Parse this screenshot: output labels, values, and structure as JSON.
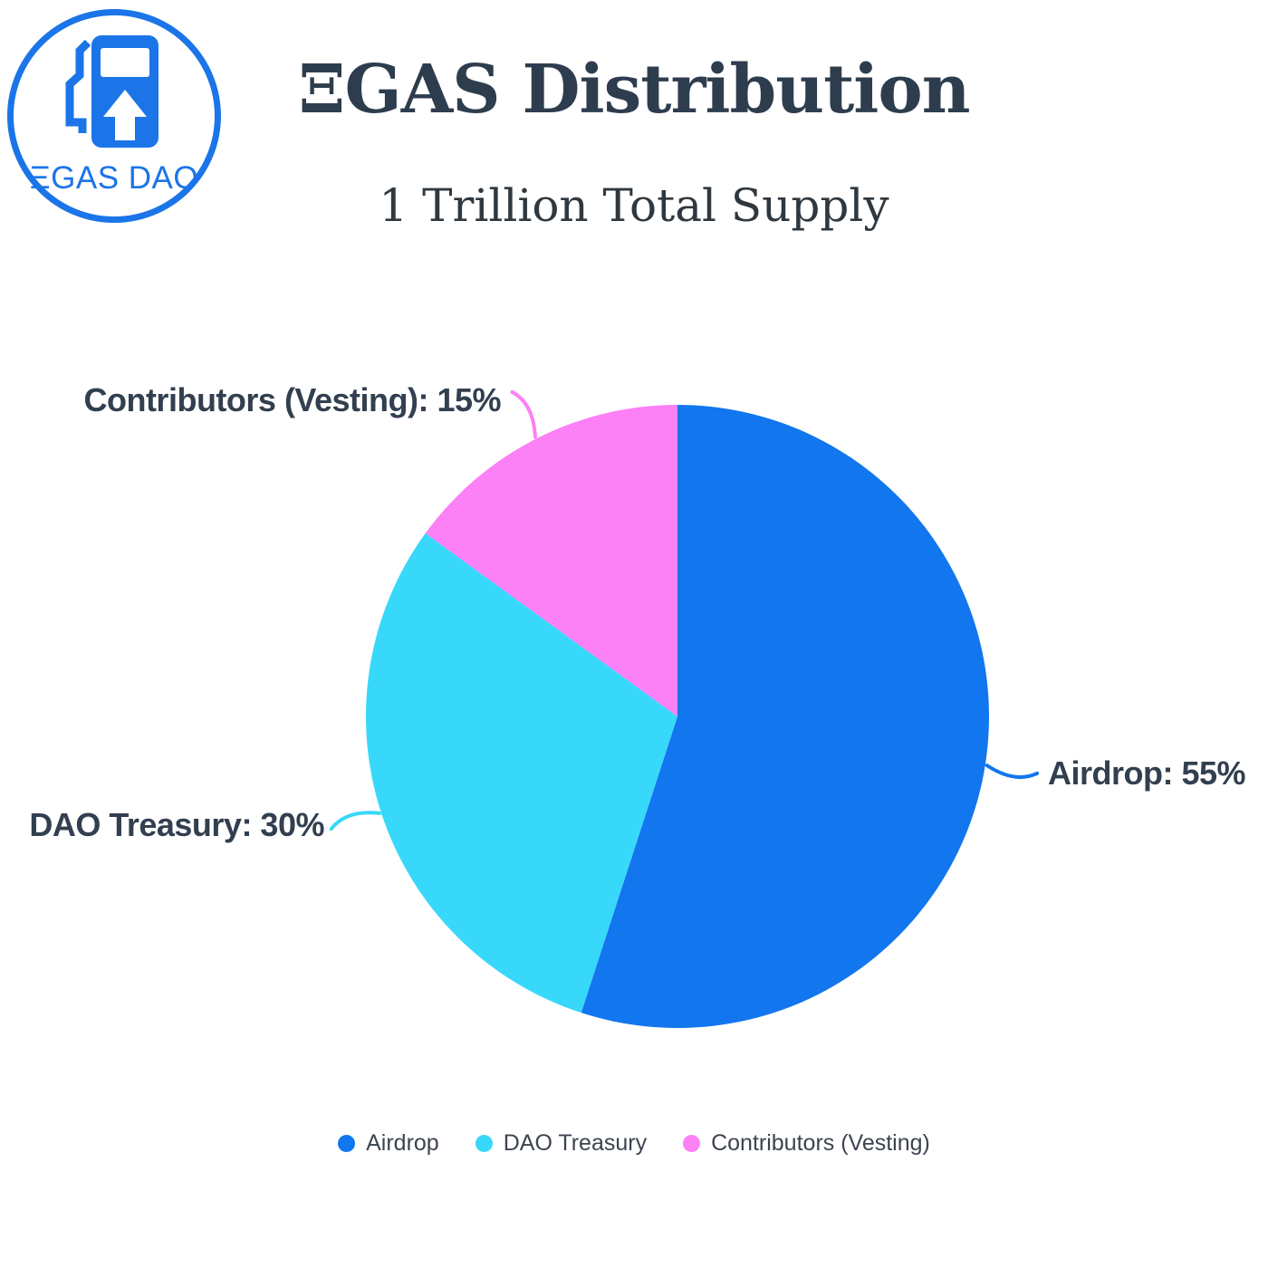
{
  "logo": {
    "text": "ΞGAS DAO",
    "icon": "gas-pump-up-arrow-icon",
    "color": "#1b75e8"
  },
  "header": {
    "title": "ΞGAS Distribution",
    "subtitle": "1 Trillion Total Supply"
  },
  "chart_data": {
    "type": "pie",
    "title": "ΞGAS Distribution",
    "subtitle": "1 Trillion Total Supply",
    "total_label": "1 Trillion Total Supply",
    "start_angle_deg": -90,
    "direction": "clockwise",
    "legend_position": "bottom",
    "slices": [
      {
        "label": "Airdrop",
        "value": 55,
        "color": "#1276ee",
        "callout": "Airdrop: 55%"
      },
      {
        "label": "DAO Treasury",
        "value": 30,
        "color": "#38d8fa",
        "callout": "DAO Treasury: 30%"
      },
      {
        "label": "Contributors (Vesting)",
        "value": 15,
        "color": "#fc80f6",
        "callout": "Contributors (Vesting): 15%"
      }
    ]
  },
  "colors": {
    "title_text": "#2e3d4e",
    "callout_text": "#323f4f",
    "legend_text": "#3c4450",
    "logo_blue": "#1b75e8",
    "background": "#ffffff"
  }
}
